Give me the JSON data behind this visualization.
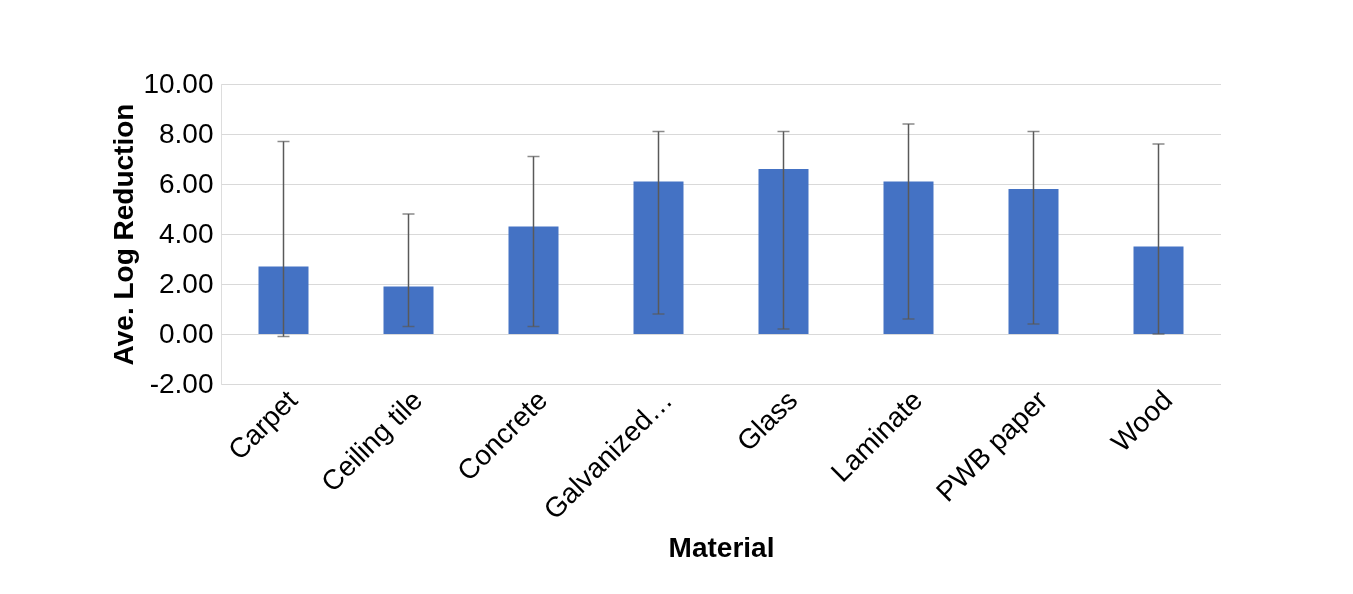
{
  "chart_data": {
    "type": "bar",
    "xlabel": "Material",
    "ylabel": "Ave. Log Reduction",
    "categories": [
      "Carpet",
      "Ceiling tile",
      "Concrete",
      "Galvanized…",
      "Glass",
      "Laminate",
      "PWB paper",
      "Wood"
    ],
    "values": [
      2.7,
      1.9,
      4.3,
      6.1,
      6.6,
      6.1,
      5.8,
      3.5
    ],
    "errors": [
      [
        -0.1,
        7.7
      ],
      [
        0.3,
        4.8
      ],
      [
        0.3,
        7.1
      ],
      [
        0.8,
        8.1
      ],
      [
        0.2,
        8.1
      ],
      [
        0.6,
        8.4
      ],
      [
        0.4,
        8.1
      ],
      [
        0.0,
        7.6
      ]
    ],
    "color": "#4472c4",
    "ylim": [
      -2,
      10
    ],
    "yticks": [
      {
        "value": -2,
        "label": "-2.00"
      },
      {
        "value": 0,
        "label": "0.00"
      },
      {
        "value": 2,
        "label": "2.00"
      },
      {
        "value": 4,
        "label": "4.00"
      },
      {
        "value": 6,
        "label": "6.00"
      },
      {
        "value": 8,
        "label": "8.00"
      },
      {
        "value": 10,
        "label": "10.00"
      }
    ],
    "grid": "y"
  }
}
